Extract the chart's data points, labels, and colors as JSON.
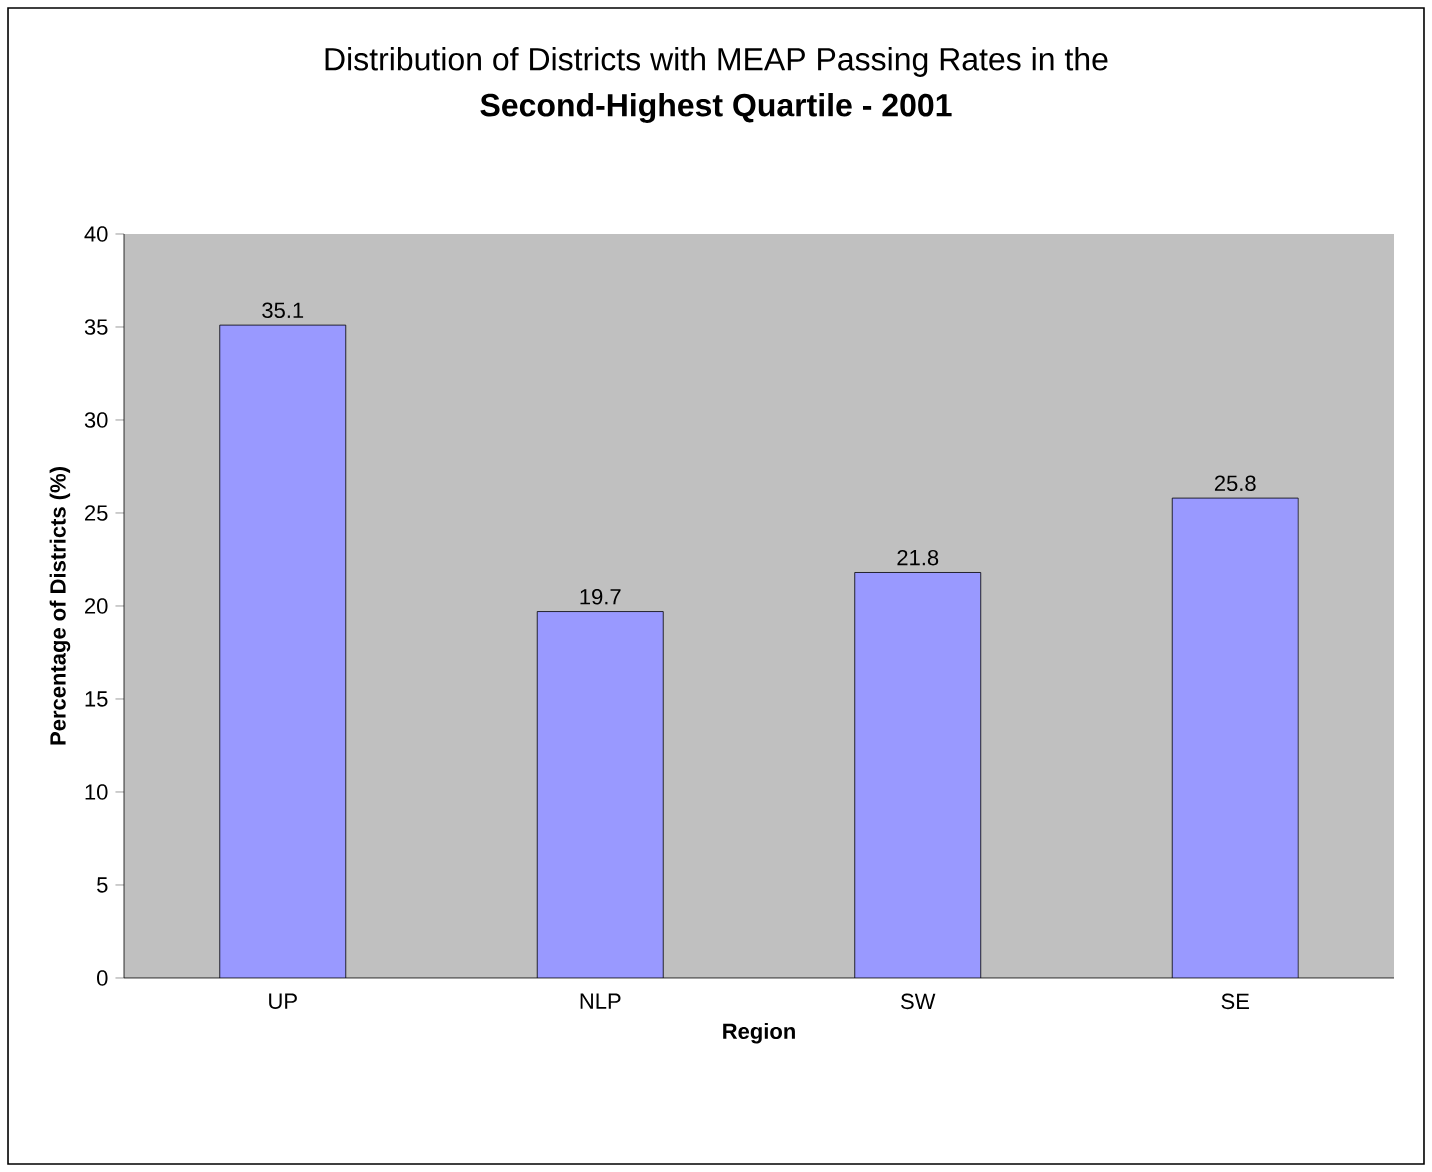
{
  "chart_data": {
    "type": "bar",
    "title": "Distribution of Districts with MEAP Passing Rates in the",
    "subtitle": "Second-Highest Quartile - 2001",
    "xlabel": "Region",
    "ylabel": "Percentage of Districts (%)",
    "categories": [
      "UP",
      "NLP",
      "SW",
      "SE"
    ],
    "values": [
      35.1,
      19.7,
      21.8,
      25.8
    ],
    "color": "#9999ff",
    "ylim": [
      0,
      40
    ],
    "yticks": [
      0,
      5,
      10,
      15,
      20,
      25,
      30,
      35,
      40
    ],
    "data_labels": true,
    "grid": false
  }
}
